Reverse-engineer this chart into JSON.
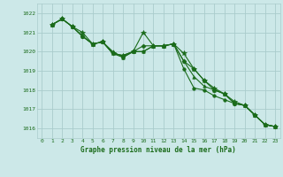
{
  "bg_color": "#cce8e8",
  "grid_color": "#aacccc",
  "line_color": "#1a6b1a",
  "label_color": "#1a6b1a",
  "xlabel": "Graphe pression niveau de la mer (hPa)",
  "ylim": [
    1015.5,
    1022.5
  ],
  "xlim": [
    -0.5,
    23.5
  ],
  "yticks": [
    1016,
    1017,
    1018,
    1019,
    1020,
    1021,
    1022
  ],
  "xticks": [
    0,
    1,
    2,
    3,
    4,
    5,
    6,
    7,
    8,
    9,
    10,
    11,
    12,
    13,
    14,
    15,
    16,
    17,
    18,
    19,
    20,
    21,
    22,
    23
  ],
  "series": [
    [
      1021.4,
      1021.7,
      1021.3,
      1021.0,
      1020.4,
      1020.5,
      1019.9,
      1019.8,
      1020.0,
      1021.0,
      1020.3,
      1020.3,
      1020.4,
      1019.9,
      1019.1,
      1018.5,
      1018.1,
      1017.8,
      1017.4,
      1017.2,
      1016.7,
      1016.2,
      1016.1
    ],
    [
      1021.4,
      1021.7,
      1021.3,
      1020.8,
      1020.4,
      1020.5,
      1019.9,
      1019.8,
      1020.0,
      1020.3,
      1020.3,
      1020.3,
      1020.4,
      1019.5,
      1019.1,
      1018.5,
      1018.0,
      1017.8,
      1017.3,
      1017.2,
      1016.7,
      1016.2,
      1016.1
    ],
    [
      1021.4,
      1021.7,
      1021.3,
      1020.8,
      1020.4,
      1020.5,
      1020.0,
      1019.7,
      1020.0,
      1020.0,
      1020.3,
      1020.3,
      1020.4,
      1019.5,
      1018.7,
      1018.2,
      1018.0,
      1017.8,
      1017.3,
      1017.2,
      1016.7,
      1016.2,
      1016.1
    ],
    [
      1021.4,
      1021.7,
      1021.3,
      1020.8,
      1020.4,
      1020.5,
      1019.9,
      1019.7,
      1020.0,
      1020.0,
      1020.3,
      1020.3,
      1020.4,
      1019.1,
      1018.1,
      1018.0,
      1017.7,
      1017.5,
      1017.3,
      1017.2,
      1016.7,
      1016.2,
      1016.1
    ]
  ],
  "markers": [
    "*",
    "D",
    "^",
    "o"
  ],
  "marker_sizes": [
    4,
    2.5,
    2.5,
    2.5
  ]
}
